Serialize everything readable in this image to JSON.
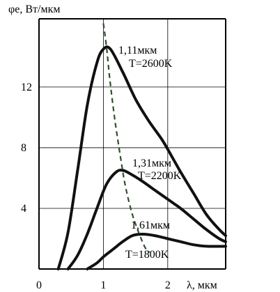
{
  "chart_data": {
    "type": "line",
    "ylabel": "φe, Вт/мкм",
    "xlabel": "λ, мкм",
    "xlim": [
      0,
      2.9
    ],
    "ylim": [
      0,
      16.5
    ],
    "x_ticks": [
      {
        "value": 0,
        "label": "0"
      },
      {
        "value": 1,
        "label": "1"
      },
      {
        "value": 2,
        "label": "2"
      }
    ],
    "y_ticks": [
      {
        "value": 4,
        "label": "4"
      },
      {
        "value": 8,
        "label": "8"
      },
      {
        "value": 12,
        "label": "12"
      }
    ],
    "grid": true,
    "series": [
      {
        "name": "T=2600K",
        "peak_label": "1,11мкм",
        "points": [
          [
            0.3,
            0.0
          ],
          [
            0.45,
            2.4
          ],
          [
            0.6,
            6.5
          ],
          [
            0.75,
            10.8
          ],
          [
            0.9,
            13.6
          ],
          [
            1.0,
            14.5
          ],
          [
            1.11,
            14.5
          ],
          [
            1.3,
            13.0
          ],
          [
            1.5,
            11.2
          ],
          [
            1.7,
            9.8
          ],
          [
            1.9,
            8.6
          ],
          [
            2.0,
            7.9
          ],
          [
            2.2,
            6.4
          ],
          [
            2.4,
            5.0
          ],
          [
            2.6,
            3.6
          ],
          [
            2.8,
            2.6
          ],
          [
            2.9,
            2.2
          ]
        ]
      },
      {
        "name": "T=2200K",
        "peak_label": "1,31мкм",
        "points": [
          [
            0.45,
            0.0
          ],
          [
            0.6,
            0.9
          ],
          [
            0.75,
            2.3
          ],
          [
            0.9,
            4.0
          ],
          [
            1.05,
            5.6
          ],
          [
            1.2,
            6.4
          ],
          [
            1.31,
            6.5
          ],
          [
            1.45,
            6.2
          ],
          [
            1.6,
            5.8
          ],
          [
            1.8,
            5.2
          ],
          [
            2.0,
            4.6
          ],
          [
            2.2,
            4.0
          ],
          [
            2.4,
            3.3
          ],
          [
            2.6,
            2.6
          ],
          [
            2.8,
            2.0
          ],
          [
            2.9,
            1.8
          ]
        ]
      },
      {
        "name": "T=1800K",
        "peak_label": "1,61мкм",
        "points": [
          [
            0.75,
            0.0
          ],
          [
            0.9,
            0.4
          ],
          [
            1.0,
            0.8
          ],
          [
            1.15,
            1.3
          ],
          [
            1.3,
            1.8
          ],
          [
            1.45,
            2.2
          ],
          [
            1.61,
            2.3
          ],
          [
            1.8,
            2.2
          ],
          [
            2.0,
            2.0
          ],
          [
            2.2,
            1.8
          ],
          [
            2.4,
            1.6
          ],
          [
            2.6,
            1.5
          ],
          [
            2.9,
            1.5
          ]
        ]
      }
    ],
    "peak_locus": [
      [
        1.0,
        16.2
      ],
      [
        1.05,
        14.6
      ],
      [
        1.1,
        12.5
      ],
      [
        1.18,
        9.8
      ],
      [
        1.28,
        7.0
      ],
      [
        1.35,
        5.3
      ],
      [
        1.45,
        3.6
      ],
      [
        1.55,
        2.4
      ],
      [
        1.65,
        1.4
      ],
      [
        1.72,
        1.1
      ]
    ]
  }
}
